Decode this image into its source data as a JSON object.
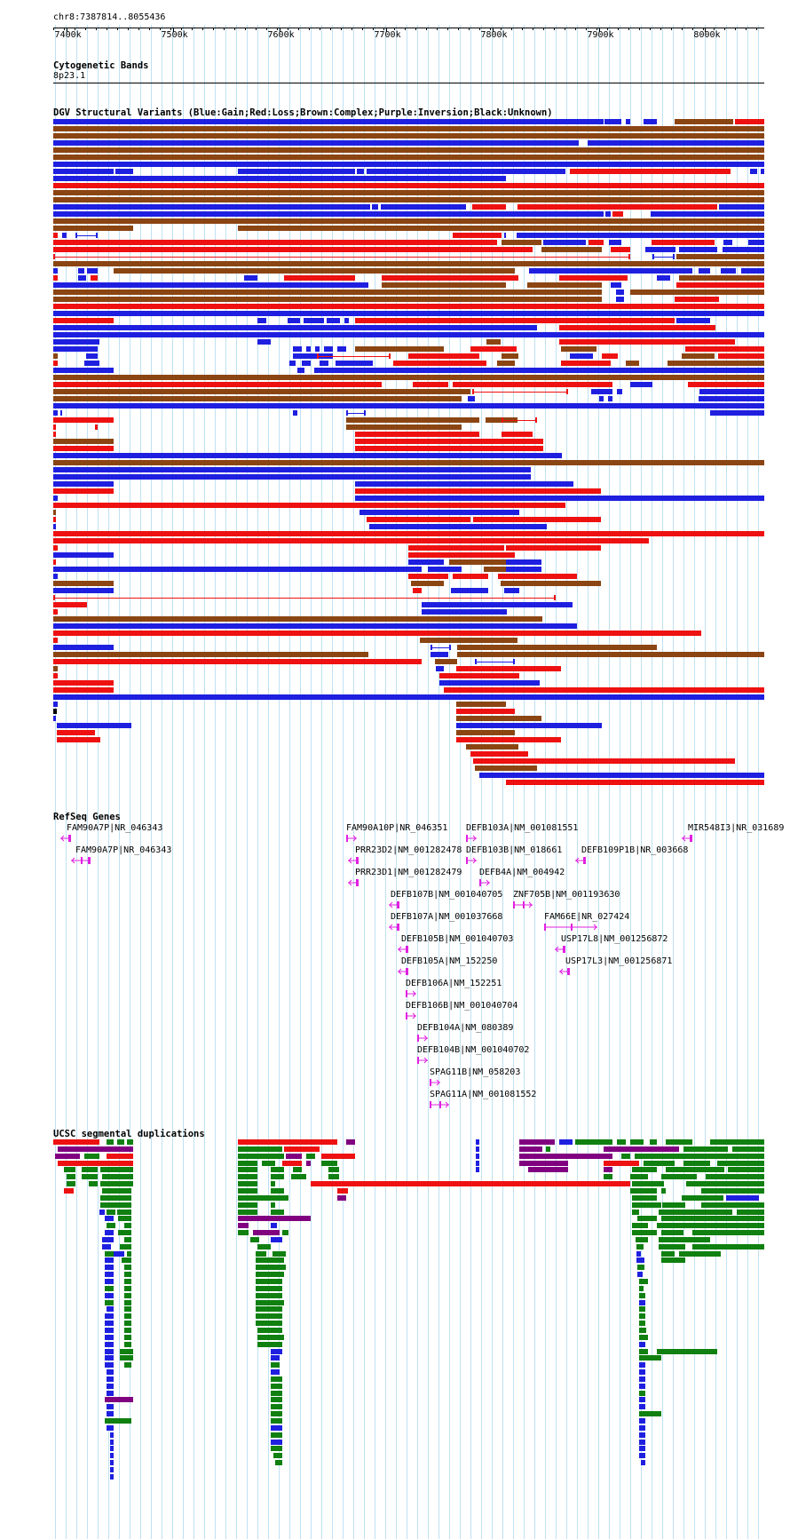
{
  "position": "chr8:7387814..8055436",
  "ruler": {
    "ticks": [
      {
        "label": "7400k",
        "kb": 7400
      },
      {
        "label": "7500k",
        "kb": 7500
      },
      {
        "label": "7600k",
        "kb": 7600
      },
      {
        "label": "7700k",
        "kb": 7700
      },
      {
        "label": "7800k",
        "kb": 7800
      },
      {
        "label": "7900k",
        "kb": 7900
      },
      {
        "label": "8000k",
        "kb": 8000
      }
    ]
  },
  "tracks": {
    "cytoband": {
      "title": "Cytogenetic Bands",
      "band": "8p23.1"
    },
    "dgv": {
      "title": "DGV Structural Variants (Blue:Gain;Red:Loss;Brown:Complex;Purple:Inversion;Black:Unknown)"
    },
    "refseq": {
      "title": "RefSeq Genes"
    },
    "segdup": {
      "title": "UCSC segmental duplications"
    }
  },
  "colors": {
    "gain": "#1f1fe0",
    "loss": "#ee1111",
    "complex": "#8b4513",
    "inversion": "#800080",
    "unknown": "#000000",
    "gene": "#e020e0",
    "grid": "#bfe1f3",
    "segdup_green": "#108010",
    "segdup_red": "#ee1111",
    "segdup_blue": "#1f1fe0",
    "segdup_purple": "#800080"
  },
  "genes": [
    {
      "name": "FAM90A7P|NR_046343",
      "kb": 7401,
      "strand": "minus"
    },
    {
      "name": "FAM90A7P|NR_046343",
      "kb": 7409,
      "strand": "minus"
    },
    {
      "name": "FAM90A10P|NR_046351",
      "kb": 7664,
      "strand": "plus"
    },
    {
      "name": "DEFB103A|NM_001081551",
      "kb": 7774,
      "strand": "plus"
    },
    {
      "name": "MIR548I3|NR_031689",
      "kb": 7987,
      "strand": "minus"
    },
    {
      "name": "PRR23D2|NM_001282478",
      "kb": 7672,
      "strand": "minus"
    },
    {
      "name": "DEFB103B|NM_018661",
      "kb": 7774,
      "strand": "plus"
    },
    {
      "name": "DEFB109P1B|NR_003668",
      "kb": 7885,
      "strand": "minus"
    },
    {
      "name": "PRR23D1|NM_001282479",
      "kb": 7672,
      "strand": "minus"
    },
    {
      "name": "DEFB4A|NM_004942",
      "kb": 7787,
      "strand": "plus"
    },
    {
      "name": "DEFB107B|NM_001040705",
      "kb": 7705,
      "strand": "minus"
    },
    {
      "name": "ZNF705B|NM_001193630",
      "kb": 7832,
      "strand": "plus"
    },
    {
      "name": "DEFB107A|NM_001037668",
      "kb": 7705,
      "strand": "minus"
    },
    {
      "name": "FAM66E|NR_027424",
      "kb": 7862,
      "strand": "plus"
    },
    {
      "name": "DEFB105B|NM_001040703",
      "kb": 7715,
      "strand": "minus"
    },
    {
      "name": "USP17L8|NM_001256872",
      "kb": 7879,
      "strand": "minus"
    },
    {
      "name": "DEFB105A|NM_152250",
      "kb": 7715,
      "strand": "minus"
    },
    {
      "name": "USP17L3|NM_001256871",
      "kb": 7883,
      "strand": "minus"
    },
    {
      "name": "DEFB106A|NM_152251",
      "kb": 7719,
      "strand": "plus"
    },
    {
      "name": "DEFB106B|NM_001040704",
      "kb": 7719,
      "strand": "plus"
    },
    {
      "name": "DEFB104A|NM_080389",
      "kb": 7731,
      "strand": "plus"
    },
    {
      "name": "DEFB104B|NM_001040702",
      "kb": 7731,
      "strand": "plus"
    },
    {
      "name": "SPAG11B|NM_058203",
      "kb": 7742,
      "strand": "plus"
    },
    {
      "name": "SPAG11A|NM_001081552",
      "kb": 7742,
      "strand": "plus"
    }
  ]
}
